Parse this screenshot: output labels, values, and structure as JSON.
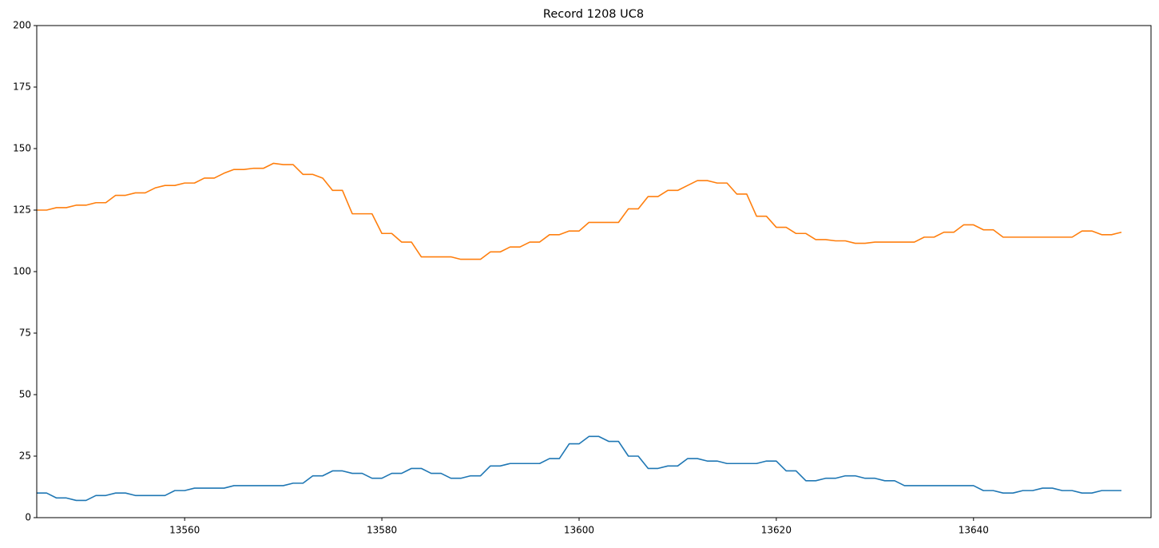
{
  "chart_data": {
    "type": "line",
    "title": "Record 1208 UC8",
    "x": [
      13545,
      13546,
      13547,
      13548,
      13549,
      13550,
      13551,
      13552,
      13553,
      13554,
      13555,
      13556,
      13557,
      13558,
      13559,
      13560,
      13561,
      13562,
      13563,
      13564,
      13565,
      13566,
      13567,
      13568,
      13569,
      13570,
      13571,
      13572,
      13573,
      13574,
      13575,
      13576,
      13577,
      13578,
      13579,
      13580,
      13581,
      13582,
      13583,
      13584,
      13585,
      13586,
      13587,
      13588,
      13589,
      13590,
      13591,
      13592,
      13593,
      13594,
      13595,
      13596,
      13597,
      13598,
      13599,
      13600,
      13601,
      13602,
      13603,
      13604,
      13605,
      13606,
      13607,
      13608,
      13609,
      13610,
      13611,
      13612,
      13613,
      13614,
      13615,
      13616,
      13617,
      13618,
      13619,
      13620,
      13621,
      13622,
      13623,
      13624,
      13625,
      13626,
      13627,
      13628,
      13629,
      13630,
      13631,
      13632,
      13633,
      13634,
      13635,
      13636,
      13637,
      13638,
      13639,
      13640,
      13641,
      13642,
      13643,
      13644,
      13645,
      13646,
      13647,
      13648,
      13649,
      13650,
      13651,
      13652,
      13653,
      13654,
      13655
    ],
    "series": [
      {
        "color": "#1f77b4",
        "values": [
          10,
          10,
          8,
          8,
          7,
          7,
          9,
          9,
          10,
          10,
          9,
          9,
          9,
          9,
          11,
          11,
          12,
          12,
          12,
          12,
          13,
          13,
          13,
          13,
          13,
          13,
          14,
          14,
          17,
          17,
          19,
          19,
          18,
          18,
          16,
          16,
          18,
          18,
          20,
          20,
          18,
          18,
          16,
          16,
          17,
          17,
          21,
          21,
          22,
          22,
          22,
          22,
          24,
          24,
          30,
          30,
          33,
          33,
          31,
          31,
          25,
          25,
          20,
          20,
          21,
          21,
          24,
          24,
          23,
          23,
          22,
          22,
          22,
          22,
          23,
          23,
          19,
          19,
          15,
          15,
          16,
          16,
          17,
          17,
          16,
          16,
          15,
          15,
          13,
          13,
          13,
          13,
          13,
          13,
          13,
          13,
          11,
          11,
          10,
          10,
          11,
          11,
          12,
          12,
          11,
          11,
          10,
          10,
          11,
          11,
          11
        ]
      },
      {
        "color": "#ff7f0e",
        "values": [
          125,
          125,
          126,
          126,
          127,
          127,
          128,
          128,
          131,
          131,
          132,
          132,
          134,
          135,
          135,
          136,
          136,
          138,
          138,
          140,
          141.5,
          141.5,
          142,
          142,
          144,
          143.5,
          143.5,
          139.5,
          139.5,
          138,
          133,
          133,
          123.5,
          123.5,
          123.5,
          115.5,
          115.5,
          112,
          112,
          106,
          106,
          106,
          106,
          105,
          105,
          105,
          108,
          108,
          110,
          110,
          112,
          112,
          115,
          115,
          116.5,
          116.5,
          120,
          120,
          120,
          120,
          125.5,
          125.5,
          130.5,
          130.5,
          133,
          133,
          135,
          137,
          137,
          136,
          136,
          131.5,
          131.5,
          122.5,
          122.5,
          118,
          118,
          115.5,
          115.5,
          113,
          113,
          112.5,
          112.5,
          111.5,
          111.5,
          112,
          112,
          112,
          112,
          112,
          114,
          114,
          116,
          116,
          119,
          119,
          117,
          117,
          114,
          114,
          114,
          114,
          114,
          114,
          114,
          114,
          116.5,
          116.5,
          115,
          115,
          116
        ]
      }
    ],
    "xlim": [
      13545,
      13658
    ],
    "xticks": [
      13560,
      13580,
      13600,
      13620,
      13640
    ],
    "ylim": [
      0,
      200
    ],
    "yticks": [
      0,
      25,
      50,
      75,
      100,
      125,
      150,
      175,
      200
    ]
  }
}
